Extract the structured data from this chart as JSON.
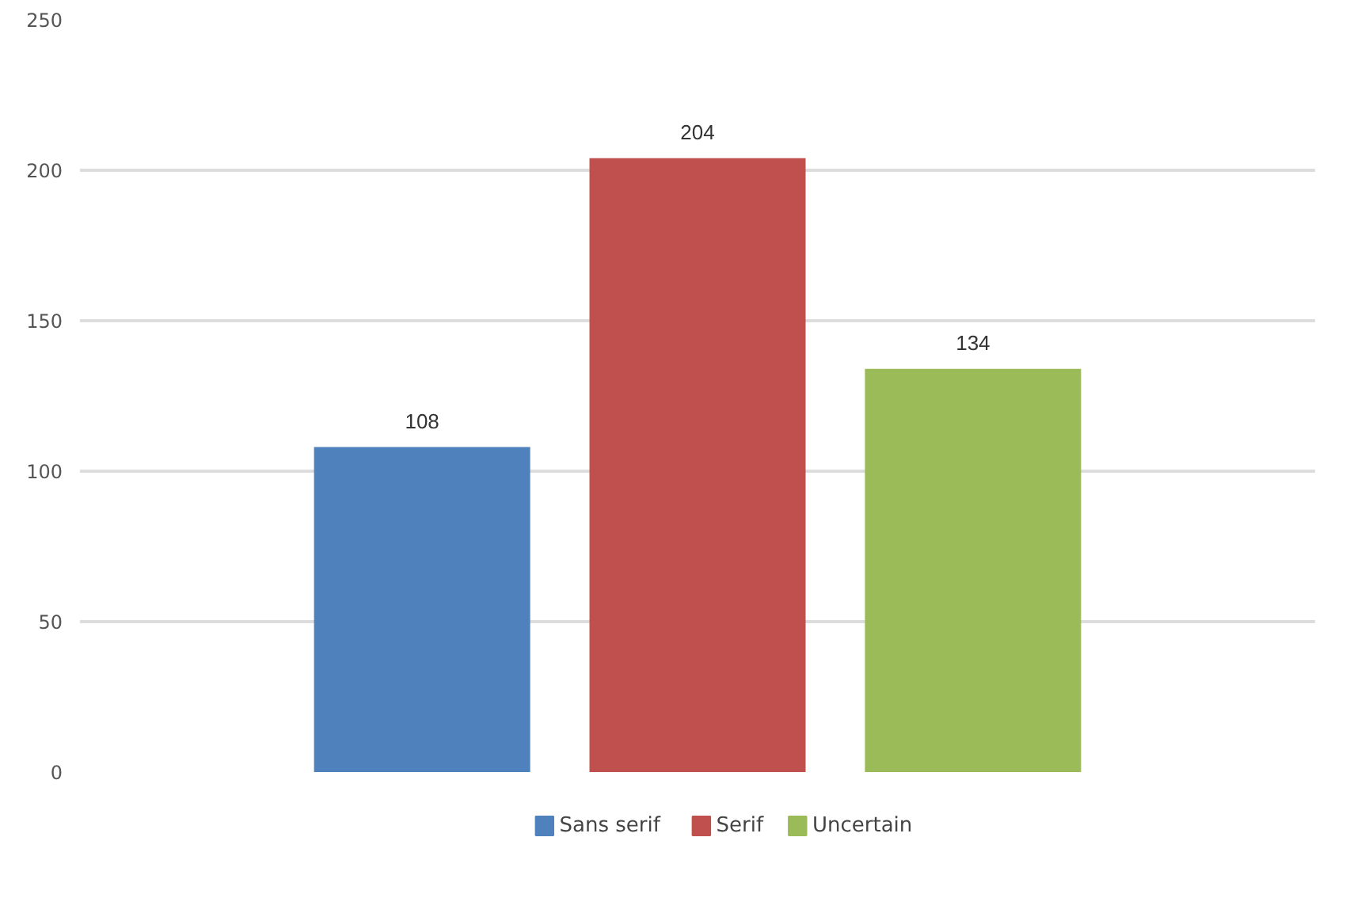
{
  "chart_data": {
    "type": "bar",
    "categories": [
      null
    ],
    "series": [
      {
        "name": "Sans serif",
        "color": "#4f81bd",
        "values": [
          108
        ]
      },
      {
        "name": "Serif",
        "color": "#c0504d",
        "values": [
          204
        ]
      },
      {
        "name": "Uncertain",
        "color": "#9bbb59",
        "values": [
          134
        ]
      }
    ],
    "ylim": [
      0,
      250
    ],
    "yticks": [
      0,
      50,
      100,
      150,
      200,
      250
    ],
    "grid": "y",
    "legend": "bottom",
    "data_labels": true
  }
}
